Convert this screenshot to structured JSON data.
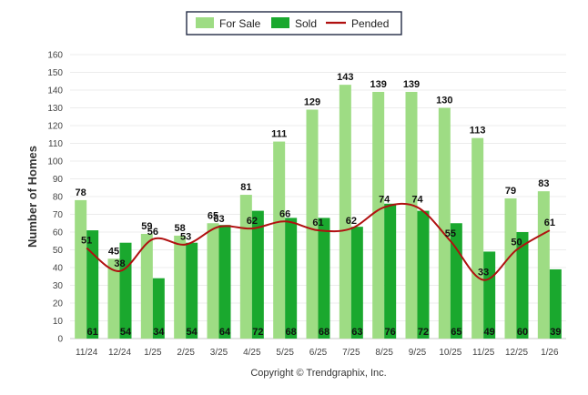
{
  "chart_data": {
    "type": "bar",
    "categories": [
      "11/24",
      "12/24",
      "1/25",
      "2/25",
      "3/25",
      "4/25",
      "5/25",
      "6/25",
      "7/25",
      "8/25",
      "9/25",
      "10/25",
      "11/25",
      "12/25",
      "1/26"
    ],
    "series": [
      {
        "name": "For Sale",
        "type": "bar",
        "color": "#9edc84",
        "values": [
          78,
          45,
          59,
          58,
          65,
          81,
          111,
          129,
          143,
          139,
          139,
          130,
          113,
          79,
          83
        ]
      },
      {
        "name": "Sold",
        "type": "bar",
        "color": "#1aa82e",
        "values": [
          61,
          54,
          34,
          54,
          64,
          72,
          68,
          68,
          63,
          76,
          72,
          65,
          49,
          60,
          39
        ]
      },
      {
        "name": "Pended",
        "type": "line",
        "color": "#b01010",
        "values": [
          51,
          38,
          56,
          53,
          63,
          62,
          66,
          61,
          62,
          74,
          74,
          55,
          33,
          50,
          61
        ]
      }
    ],
    "ylabel": "Number of Homes",
    "xlabel": "",
    "ylim": [
      0,
      160
    ],
    "yticks": [
      0,
      10,
      20,
      30,
      40,
      50,
      60,
      70,
      80,
      90,
      100,
      110,
      120,
      130,
      140,
      150,
      160
    ],
    "grid": true,
    "legend_position": "top-center",
    "credit": "Copyright © Trendgraphix, Inc."
  }
}
